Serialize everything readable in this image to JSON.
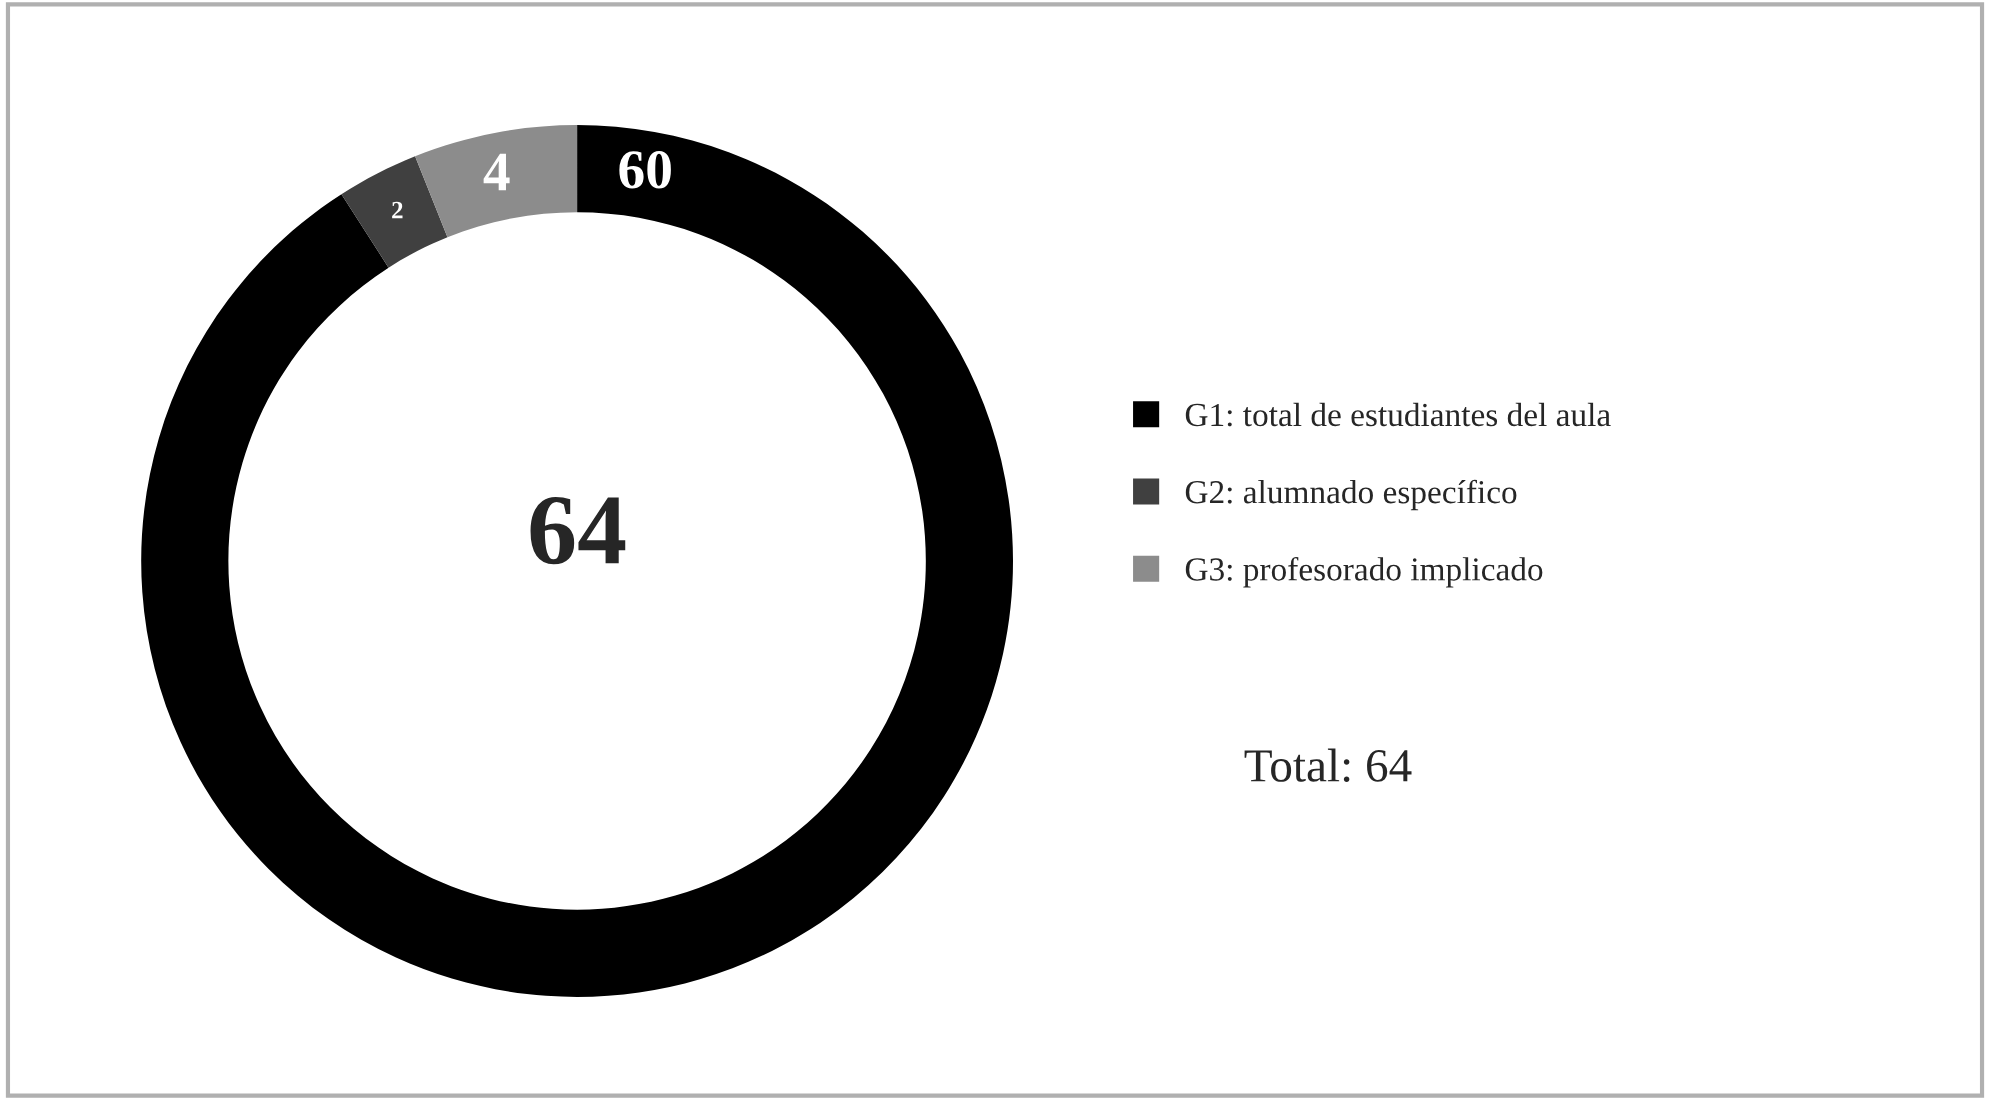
{
  "chart_data": {
    "type": "donut",
    "categories": [
      "G1: total de estudiantes del aula",
      "G2: alumnado específico",
      "G3: profesorado implicado"
    ],
    "values": [
      60,
      2,
      4
    ],
    "colors": [
      "#000000",
      "#404040",
      "#8c8c8c"
    ],
    "data_labels": true,
    "legend": "right",
    "annotations": [
      "64",
      "Total: 64"
    ]
  }
}
